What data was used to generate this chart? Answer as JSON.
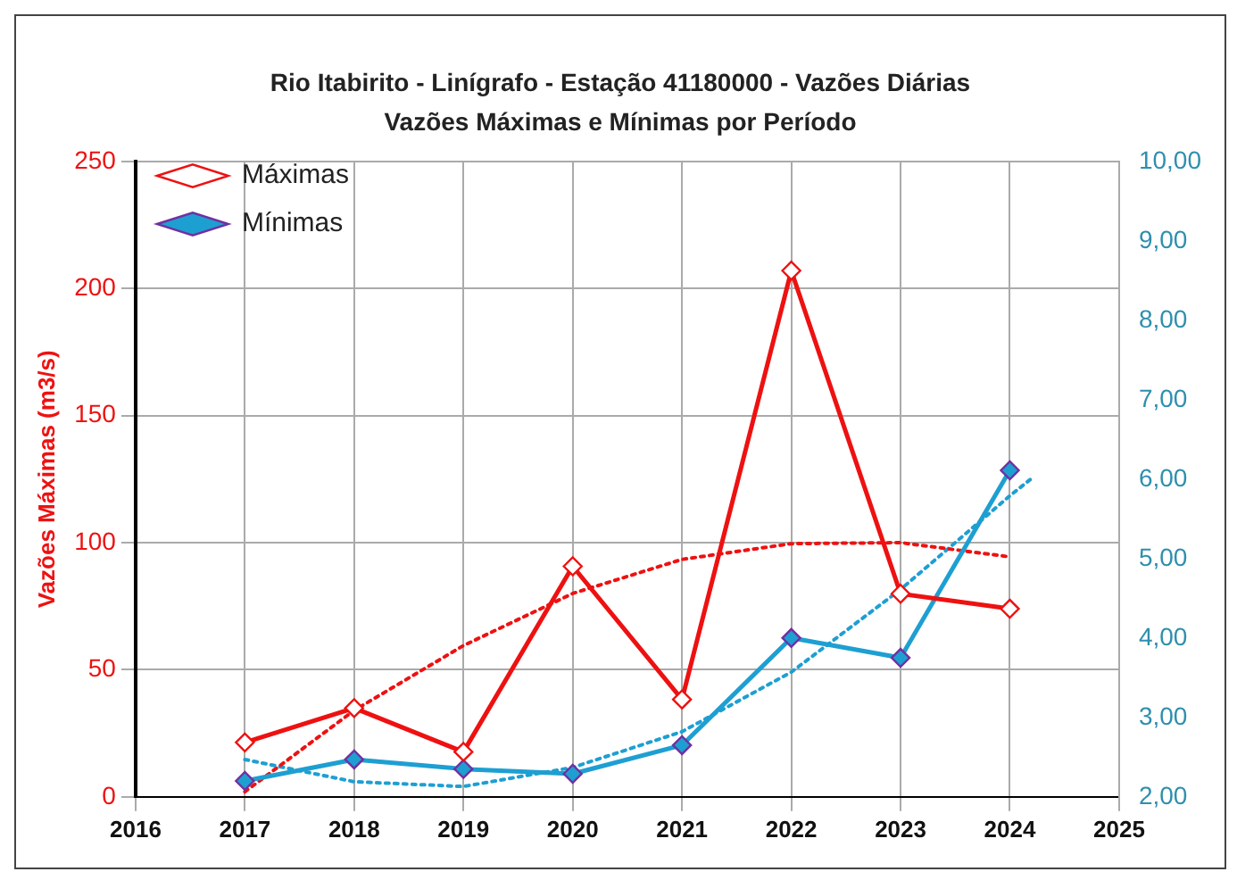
{
  "chart_data": {
    "type": "line",
    "title": "Rio Itabirito - Linígrafo -  Estação 41180000 - Vazões Diárias",
    "subtitle": "Vazões Máximas e Mínimas por Período",
    "ylabel": "Vazões Máximas (m3/s)",
    "x": [
      2017,
      2018,
      2019,
      2020,
      2021,
      2022,
      2023,
      2024
    ],
    "xlim": [
      2016,
      2025
    ],
    "xticks": [
      2016,
      2017,
      2018,
      2019,
      2020,
      2021,
      2022,
      2023,
      2024,
      2025
    ],
    "ylim": [
      0,
      250
    ],
    "yticks": [
      0,
      50,
      100,
      150,
      200,
      250
    ],
    "y2lim": [
      2,
      10
    ],
    "y2ticks": [
      {
        "value": 2,
        "label": "2,00"
      },
      {
        "value": 3,
        "label": "3,00"
      },
      {
        "value": 4,
        "label": "4,00"
      },
      {
        "value": 5,
        "label": "5,00"
      },
      {
        "value": 6,
        "label": "6,00"
      },
      {
        "value": 7,
        "label": "7,00"
      },
      {
        "value": 8,
        "label": "8,00"
      },
      {
        "value": 9,
        "label": "9,00"
      },
      {
        "value": 10,
        "label": "10,00"
      }
    ],
    "grid": true,
    "legend": "top left",
    "marker": "diamond",
    "line_style": "solid",
    "series": [
      {
        "name": "Máximas",
        "color": "#ee1111",
        "values": [
          21.4,
          34.9,
          17.7,
          90.7,
          38.3,
          207,
          79.9,
          74
        ]
      },
      {
        "name": "Mínimas",
        "color": "#1e9fd2",
        "axis": "y2",
        "values": [
          2.2,
          2.47,
          2.35,
          2.29,
          2.65,
          4.0,
          3.75,
          6.11
        ]
      },
      {
        "type": "line",
        "color": "#ee1111",
        "marker": "none",
        "line_style": "dotted",
        "x": [
          2017,
          2018,
          2019,
          2020,
          2021,
          2022,
          2023,
          2024
        ],
        "values": [
          2,
          34,
          59.5,
          80,
          93.4,
          99.6,
          100,
          94.4
        ]
      },
      {
        "type": "line",
        "color": "#1e9fd2",
        "axis": "y2",
        "marker": "none",
        "line_style": "dotted",
        "x": [
          2017,
          2018,
          2019,
          2020,
          2021,
          2022,
          2023,
          2024,
          2024.2
        ],
        "values": [
          2.47,
          2.19,
          2.13,
          2.37,
          2.82,
          3.57,
          4.61,
          5.79,
          6.01
        ]
      }
    ]
  }
}
